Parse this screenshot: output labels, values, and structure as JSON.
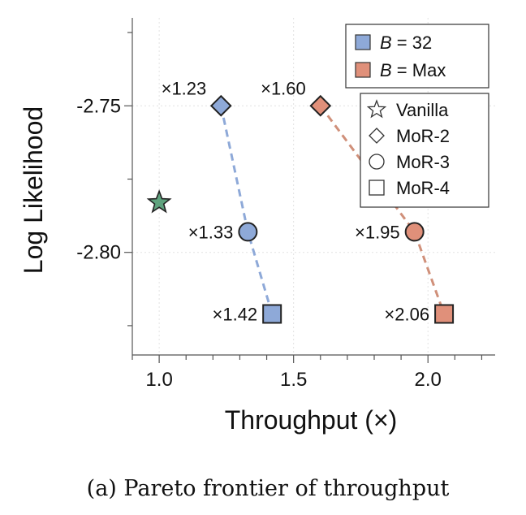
{
  "chart_data": {
    "type": "scatter",
    "caption": "(a) Pareto frontier of throughput",
    "xlabel": "Throughput (×)",
    "ylabel": "Log Likelihood",
    "xlim": [
      0.9,
      2.25
    ],
    "ylim": [
      -2.835,
      -2.72
    ],
    "x_ticks": [
      1.0,
      1.5,
      2.0
    ],
    "x_tick_labels": [
      "1.0",
      "1.5",
      "2.0"
    ],
    "y_ticks": [
      -2.75,
      -2.8
    ],
    "y_tick_labels": [
      "-2.75",
      "-2.80"
    ],
    "grid": true,
    "legend_batch": {
      "placement": "top-right",
      "entries": [
        {
          "var": "B",
          "rest": " = 32",
          "color": "#8EA9D8"
        },
        {
          "var": "B",
          "rest": " = Max",
          "color": "#E0907A"
        }
      ]
    },
    "legend_model": {
      "placement": "right",
      "entries": [
        {
          "label": "Vanilla",
          "marker": "star"
        },
        {
          "label": "MoR-2",
          "marker": "diamond"
        },
        {
          "label": "MoR-3",
          "marker": "circle"
        },
        {
          "label": "MoR-4",
          "marker": "square"
        }
      ]
    },
    "vanilla": {
      "label": "Vanilla",
      "x": 1.0,
      "y": -2.783,
      "color": "#5FA37E"
    },
    "series": [
      {
        "name": "B = 32",
        "color": "#8EA9D8",
        "line_color": "#8EA9D8",
        "points": [
          {
            "model": "MoR-2",
            "marker": "diamond",
            "x": 1.23,
            "y": -2.75,
            "label": "×1.23"
          },
          {
            "model": "MoR-3",
            "marker": "circle",
            "x": 1.33,
            "y": -2.793,
            "label": "×1.33"
          },
          {
            "model": "MoR-4",
            "marker": "square",
            "x": 1.42,
            "y": -2.821,
            "label": "×1.42"
          }
        ]
      },
      {
        "name": "B = Max",
        "color": "#E0907A",
        "line_color": "#D0907A",
        "points": [
          {
            "model": "MoR-2",
            "marker": "diamond",
            "x": 1.6,
            "y": -2.75,
            "label": "×1.60"
          },
          {
            "model": "MoR-3",
            "marker": "circle",
            "x": 1.95,
            "y": -2.793,
            "label": "×1.95"
          },
          {
            "model": "MoR-4",
            "marker": "square",
            "x": 2.06,
            "y": -2.821,
            "label": "×2.06"
          }
        ]
      }
    ]
  }
}
